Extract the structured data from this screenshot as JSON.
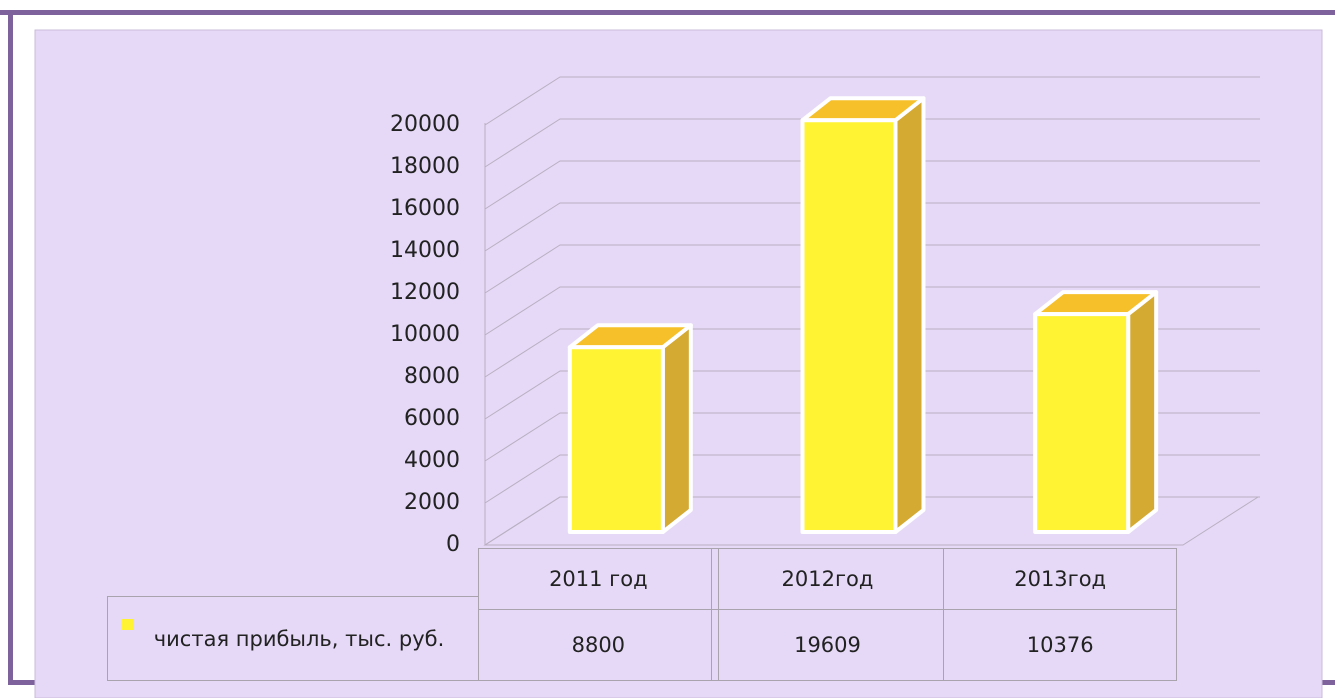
{
  "chart_data": {
    "type": "bar3d",
    "categories": [
      "2011 год",
      "2012год",
      "2013год"
    ],
    "series": [
      {
        "name": "чистая прибыль, тыс. руб.",
        "color": "#fff333",
        "values": [
          8800,
          19609,
          10376
        ]
      }
    ],
    "ylim": [
      0,
      20000
    ],
    "yticks": [
      0,
      2000,
      4000,
      6000,
      8000,
      10000,
      12000,
      14000,
      16000,
      18000,
      20000
    ],
    "grid": true
  }
}
